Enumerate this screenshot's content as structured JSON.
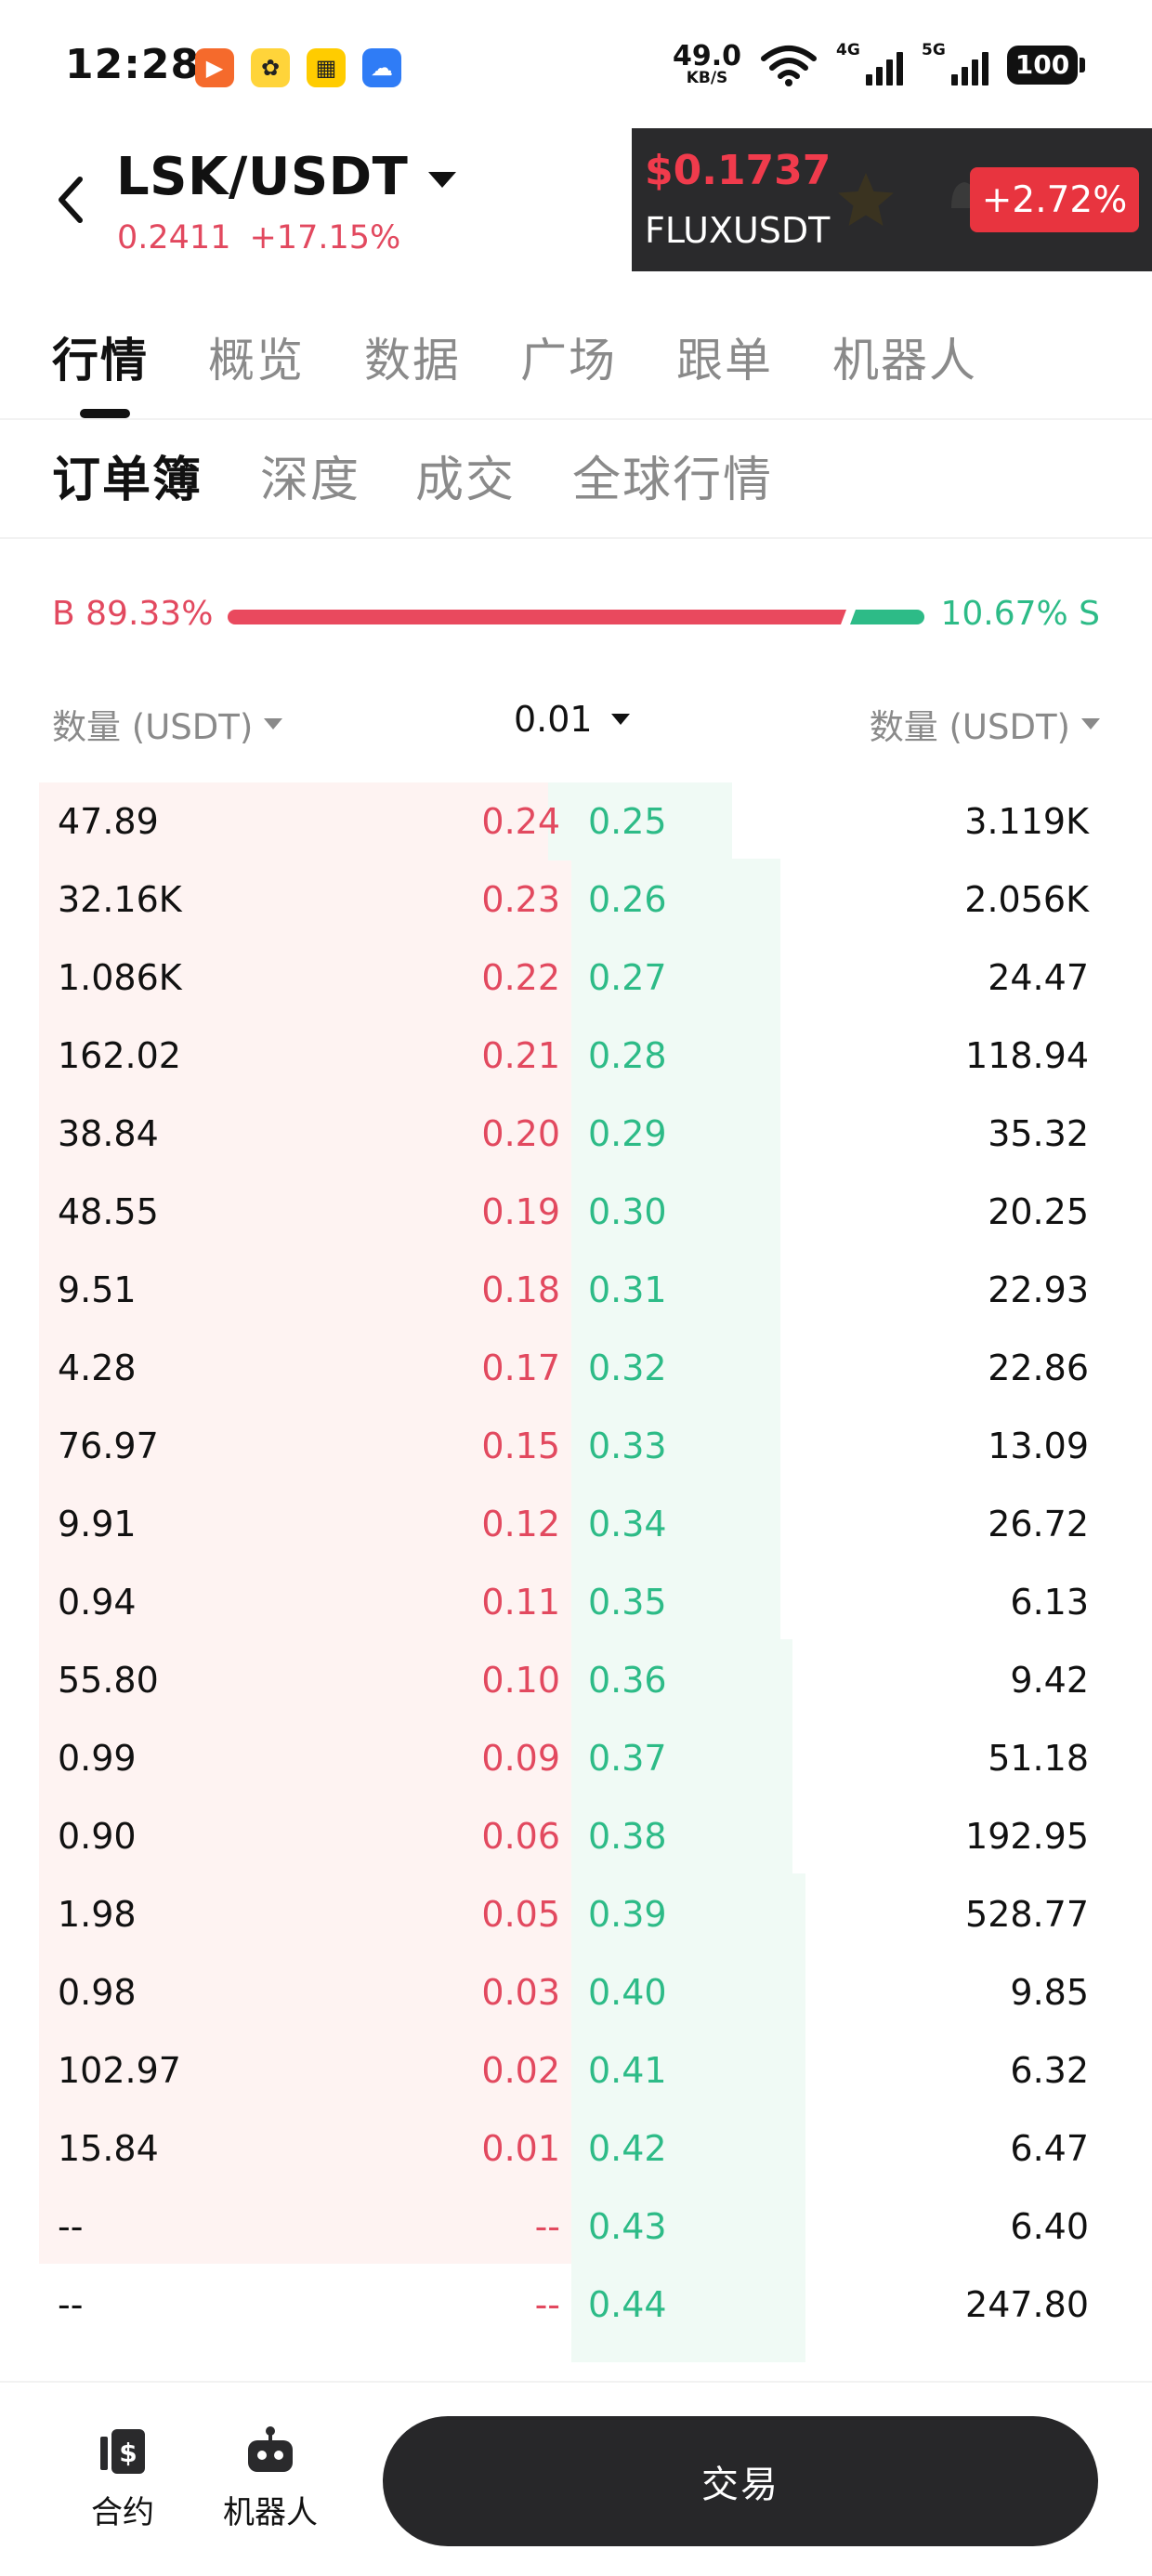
{
  "status_bar": {
    "time": "12:28",
    "net_speed": "49.0",
    "net_unit": "KB/S",
    "signal_1": "4G",
    "signal_2": "5G",
    "battery": "100",
    "icons": [
      "video-app-icon",
      "bee-app-icon",
      "news-app-icon",
      "cloud-app-icon",
      "wifi-icon",
      "signal-icon",
      "battery-icon"
    ]
  },
  "header": {
    "pair": "LSK/USDT",
    "price": "0.2411",
    "change": "+17.15%"
  },
  "floating_ticker": {
    "price": "$0.1737",
    "symbol": "FLUXUSDT",
    "change": "+2.72%"
  },
  "main_tabs": [
    "行情",
    "概览",
    "数据",
    "广场",
    "跟单",
    "机器人"
  ],
  "main_tab_active": "行情",
  "sub_tabs": [
    "订单簿",
    "深度",
    "成交",
    "全球行情"
  ],
  "sub_tab_active": "订单簿",
  "ratio": {
    "buy_label": "B 89.33%",
    "sell_label": "10.67% S",
    "buy_pct": 89.33,
    "sell_pct": 10.67
  },
  "columns": {
    "bid_qty": "数量 (USDT)",
    "precision": "0.01",
    "ask_qty": "数量 (USDT)"
  },
  "order_book": [
    {
      "bid_qty": "47.89",
      "bid_px": "0.24",
      "ask_px": "0.25",
      "ask_qty": "3.119K"
    },
    {
      "bid_qty": "32.16K",
      "bid_px": "0.23",
      "ask_px": "0.26",
      "ask_qty": "2.056K"
    },
    {
      "bid_qty": "1.086K",
      "bid_px": "0.22",
      "ask_px": "0.27",
      "ask_qty": "24.47"
    },
    {
      "bid_qty": "162.02",
      "bid_px": "0.21",
      "ask_px": "0.28",
      "ask_qty": "118.94"
    },
    {
      "bid_qty": "38.84",
      "bid_px": "0.20",
      "ask_px": "0.29",
      "ask_qty": "35.32"
    },
    {
      "bid_qty": "48.55",
      "bid_px": "0.19",
      "ask_px": "0.30",
      "ask_qty": "20.25"
    },
    {
      "bid_qty": "9.51",
      "bid_px": "0.18",
      "ask_px": "0.31",
      "ask_qty": "22.93"
    },
    {
      "bid_qty": "4.28",
      "bid_px": "0.17",
      "ask_px": "0.32",
      "ask_qty": "22.86"
    },
    {
      "bid_qty": "76.97",
      "bid_px": "0.15",
      "ask_px": "0.33",
      "ask_qty": "13.09"
    },
    {
      "bid_qty": "9.91",
      "bid_px": "0.12",
      "ask_px": "0.34",
      "ask_qty": "26.72"
    },
    {
      "bid_qty": "0.94",
      "bid_px": "0.11",
      "ask_px": "0.35",
      "ask_qty": "6.13"
    },
    {
      "bid_qty": "55.80",
      "bid_px": "0.10",
      "ask_px": "0.36",
      "ask_qty": "9.42"
    },
    {
      "bid_qty": "0.99",
      "bid_px": "0.09",
      "ask_px": "0.37",
      "ask_qty": "51.18"
    },
    {
      "bid_qty": "0.90",
      "bid_px": "0.06",
      "ask_px": "0.38",
      "ask_qty": "192.95"
    },
    {
      "bid_qty": "1.98",
      "bid_px": "0.05",
      "ask_px": "0.39",
      "ask_qty": "528.77"
    },
    {
      "bid_qty": "0.98",
      "bid_px": "0.03",
      "ask_px": "0.40",
      "ask_qty": "9.85"
    },
    {
      "bid_qty": "102.97",
      "bid_px": "0.02",
      "ask_px": "0.41",
      "ask_qty": "6.32"
    },
    {
      "bid_qty": "15.84",
      "bid_px": "0.01",
      "ask_px": "0.42",
      "ask_qty": "6.47"
    },
    {
      "bid_qty": "--",
      "bid_px": "--",
      "ask_px": "0.43",
      "ask_qty": "6.40"
    },
    {
      "bid_qty": "--",
      "bid_px": "--",
      "ask_px": "0.44",
      "ask_qty": "247.80"
    }
  ],
  "bottom_nav": {
    "contract": "合约",
    "bot": "机器人",
    "trade": "交易"
  },
  "colors": {
    "buy": "#e2495f",
    "sell": "#2dbb87",
    "bid_depth": "#fef3f2",
    "ask_depth": "#f0faf5",
    "ticker_bg": "#2a2a2c",
    "ticker_change_bg": "#e8343f",
    "trade_button_bg": "#272729"
  }
}
